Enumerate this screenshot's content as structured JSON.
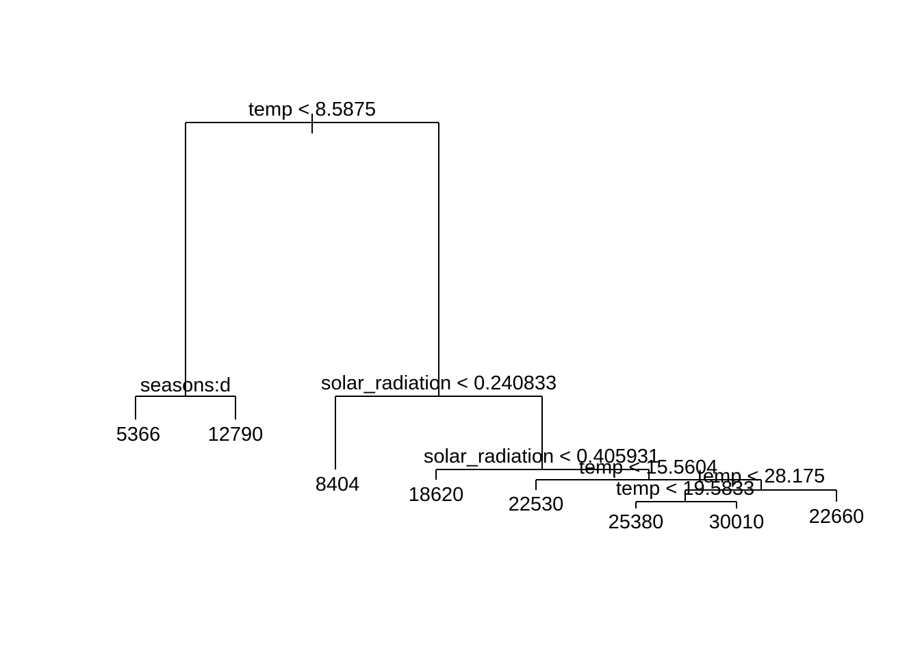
{
  "tree": {
    "splits": {
      "root": "temp < 8.5875",
      "left": "seasons:d",
      "right": "solar_radiation < 0.240833",
      "right_right": "solar_radiation < 0.405931",
      "rrr": "temp < 15.5604",
      "rrrr": "temp < 28.175",
      "rrrrl": "temp < 19.5833"
    },
    "leaves": {
      "ll": "5366",
      "lr": "12790",
      "rl": "8404",
      "rrl": "18620",
      "rrrl": "22530",
      "rrrrll": "25380",
      "rrrrlr": "30010",
      "rrrrr": "22660"
    }
  }
}
